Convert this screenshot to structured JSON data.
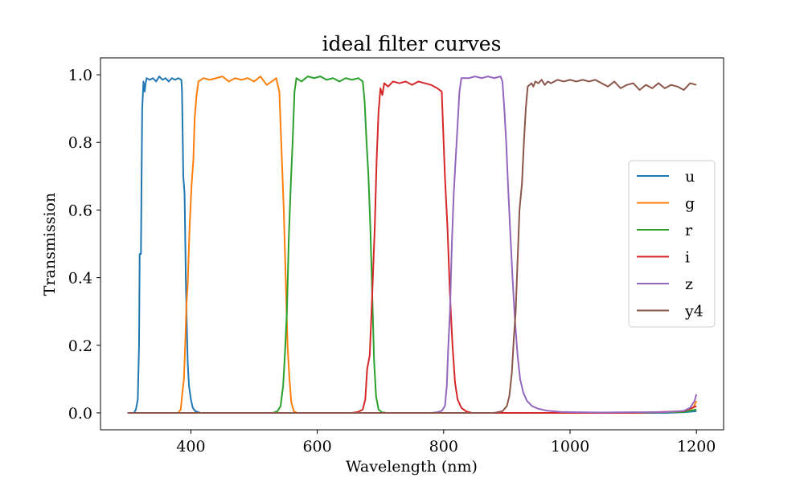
{
  "chart_data": {
    "type": "line",
    "title": "ideal filter curves",
    "xlabel": "Wavelength (nm)",
    "ylabel": "Transmission",
    "xlim": [
      257,
      1243
    ],
    "ylim": [
      -0.05,
      1.05
    ],
    "x_ticks": [
      400,
      600,
      800,
      1000,
      1200
    ],
    "x_tick_labels": [
      "400",
      "600",
      "800",
      "1000",
      "1200"
    ],
    "y_ticks": [
      0.0,
      0.2,
      0.4,
      0.6,
      0.8,
      1.0
    ],
    "y_tick_labels": [
      "0.0",
      "0.2",
      "0.4",
      "0.6",
      "0.8",
      "1.0"
    ],
    "grid": false,
    "legend_position": "center-right",
    "series": [
      {
        "name": "u",
        "color": "#1f77b4",
        "points": [
          [
            300,
            0
          ],
          [
            310,
            0
          ],
          [
            313,
            0.01
          ],
          [
            316,
            0.04
          ],
          [
            318,
            0.2
          ],
          [
            319,
            0.47
          ],
          [
            321,
            0.47
          ],
          [
            322,
            0.7
          ],
          [
            323,
            0.9
          ],
          [
            325,
            0.98
          ],
          [
            327,
            0.95
          ],
          [
            328,
            0.97
          ],
          [
            330,
            0.99
          ],
          [
            335,
            0.985
          ],
          [
            340,
            0.99
          ],
          [
            345,
            0.98
          ],
          [
            350,
            0.995
          ],
          [
            355,
            0.985
          ],
          [
            360,
            0.99
          ],
          [
            365,
            0.98
          ],
          [
            370,
            0.99
          ],
          [
            375,
            0.985
          ],
          [
            380,
            0.99
          ],
          [
            385,
            0.985
          ],
          [
            386,
            0.95
          ],
          [
            388,
            0.7
          ],
          [
            390,
            0.65
          ],
          [
            392,
            0.4
          ],
          [
            393,
            0.3
          ],
          [
            395,
            0.15
          ],
          [
            397,
            0.08
          ],
          [
            400,
            0.04
          ],
          [
            403,
            0.015
          ],
          [
            407,
            0.005
          ],
          [
            415,
            0
          ],
          [
            1100,
            0
          ],
          [
            1150,
            0
          ],
          [
            1180,
            0.002
          ],
          [
            1200,
            0.005
          ]
        ]
      },
      {
        "name": "g",
        "color": "#ff7f0e",
        "points": [
          [
            300,
            0
          ],
          [
            380,
            0
          ],
          [
            384,
            0.01
          ],
          [
            386,
            0.05
          ],
          [
            389,
            0.1
          ],
          [
            391,
            0.2
          ],
          [
            393,
            0.32
          ],
          [
            395,
            0.38
          ],
          [
            398,
            0.55
          ],
          [
            401,
            0.67
          ],
          [
            404,
            0.75
          ],
          [
            406,
            0.87
          ],
          [
            409,
            0.94
          ],
          [
            412,
            0.98
          ],
          [
            420,
            0.99
          ],
          [
            430,
            0.985
          ],
          [
            440,
            0.99
          ],
          [
            450,
            0.995
          ],
          [
            460,
            0.98
          ],
          [
            470,
            0.99
          ],
          [
            480,
            0.985
          ],
          [
            490,
            0.99
          ],
          [
            500,
            0.98
          ],
          [
            510,
            0.995
          ],
          [
            520,
            0.97
          ],
          [
            528,
            0.98
          ],
          [
            535,
            0.99
          ],
          [
            540,
            0.95
          ],
          [
            543,
            0.8
          ],
          [
            547,
            0.6
          ],
          [
            550,
            0.4
          ],
          [
            553,
            0.2
          ],
          [
            556,
            0.1
          ],
          [
            559,
            0.03
          ],
          [
            563,
            0.005
          ],
          [
            568,
            0
          ],
          [
            1100,
            0
          ],
          [
            1150,
            0.002
          ],
          [
            1180,
            0.005
          ],
          [
            1195,
            0.015
          ],
          [
            1200,
            0.035
          ]
        ]
      },
      {
        "name": "r",
        "color": "#2ca02c",
        "points": [
          [
            300,
            0
          ],
          [
            530,
            0
          ],
          [
            537,
            0.005
          ],
          [
            542,
            0.02
          ],
          [
            546,
            0.08
          ],
          [
            549,
            0.18
          ],
          [
            552,
            0.3
          ],
          [
            555,
            0.52
          ],
          [
            558,
            0.67
          ],
          [
            561,
            0.8
          ],
          [
            564,
            0.95
          ],
          [
            567,
            0.99
          ],
          [
            575,
            0.98
          ],
          [
            585,
            0.995
          ],
          [
            595,
            0.99
          ],
          [
            605,
            0.995
          ],
          [
            615,
            0.985
          ],
          [
            625,
            0.99
          ],
          [
            635,
            0.98
          ],
          [
            645,
            0.99
          ],
          [
            655,
            0.985
          ],
          [
            665,
            0.99
          ],
          [
            672,
            0.98
          ],
          [
            675,
            0.92
          ],
          [
            678,
            0.8
          ],
          [
            681,
            0.7
          ],
          [
            684,
            0.55
          ],
          [
            687,
            0.35
          ],
          [
            690,
            0.15
          ],
          [
            693,
            0.05
          ],
          [
            697,
            0.01
          ],
          [
            702,
            0.002
          ],
          [
            710,
            0
          ],
          [
            1100,
            0
          ],
          [
            1150,
            0.002
          ],
          [
            1180,
            0.003
          ],
          [
            1200,
            0.01
          ]
        ]
      },
      {
        "name": "i",
        "color": "#d62728",
        "points": [
          [
            300,
            0
          ],
          [
            655,
            0
          ],
          [
            665,
            0.003
          ],
          [
            672,
            0.01
          ],
          [
            676,
            0.04
          ],
          [
            679,
            0.13
          ],
          [
            683,
            0.17
          ],
          [
            687,
            0.35
          ],
          [
            691,
            0.55
          ],
          [
            694,
            0.75
          ],
          [
            697,
            0.89
          ],
          [
            700,
            0.96
          ],
          [
            703,
            0.94
          ],
          [
            706,
            0.975
          ],
          [
            712,
            0.965
          ],
          [
            720,
            0.98
          ],
          [
            730,
            0.975
          ],
          [
            740,
            0.98
          ],
          [
            750,
            0.97
          ],
          [
            760,
            0.98
          ],
          [
            770,
            0.975
          ],
          [
            780,
            0.97
          ],
          [
            790,
            0.96
          ],
          [
            797,
            0.95
          ],
          [
            799,
            0.85
          ],
          [
            802,
            0.7
          ],
          [
            806,
            0.55
          ],
          [
            810,
            0.35
          ],
          [
            814,
            0.2
          ],
          [
            818,
            0.09
          ],
          [
            822,
            0.04
          ],
          [
            828,
            0.015
          ],
          [
            836,
            0.004
          ],
          [
            845,
            0
          ],
          [
            1100,
            0
          ],
          [
            1180,
            0.005
          ],
          [
            1200,
            0.02
          ]
        ]
      },
      {
        "name": "z",
        "color": "#9467bd",
        "points": [
          [
            300,
            0
          ],
          [
            780,
            0
          ],
          [
            790,
            0.002
          ],
          [
            797,
            0.006
          ],
          [
            802,
            0.02
          ],
          [
            805,
            0.08
          ],
          [
            807,
            0.18
          ],
          [
            810,
            0.3
          ],
          [
            813,
            0.5
          ],
          [
            816,
            0.65
          ],
          [
            819,
            0.75
          ],
          [
            822,
            0.85
          ],
          [
            825,
            0.95
          ],
          [
            828,
            0.99
          ],
          [
            840,
            0.99
          ],
          [
            850,
            0.995
          ],
          [
            860,
            0.99
          ],
          [
            870,
            0.995
          ],
          [
            880,
            0.99
          ],
          [
            890,
            0.995
          ],
          [
            893,
            0.98
          ],
          [
            896,
            0.9
          ],
          [
            899,
            0.8
          ],
          [
            902,
            0.67
          ],
          [
            905,
            0.55
          ],
          [
            909,
            0.4
          ],
          [
            913,
            0.27
          ],
          [
            917,
            0.17
          ],
          [
            921,
            0.1
          ],
          [
            926,
            0.06
          ],
          [
            932,
            0.035
          ],
          [
            940,
            0.02
          ],
          [
            950,
            0.012
          ],
          [
            965,
            0.006
          ],
          [
            985,
            0.003
          ],
          [
            1010,
            0.002
          ],
          [
            1050,
            0.001
          ],
          [
            1100,
            0.002
          ],
          [
            1150,
            0.002
          ],
          [
            1180,
            0.006
          ],
          [
            1190,
            0.015
          ],
          [
            1197,
            0.035
          ],
          [
            1200,
            0.055
          ]
        ]
      },
      {
        "name": "y4",
        "color": "#8c564b",
        "points": [
          [
            300,
            0
          ],
          [
            880,
            0
          ],
          [
            893,
            0.005
          ],
          [
            900,
            0.02
          ],
          [
            904,
            0.05
          ],
          [
            908,
            0.12
          ],
          [
            911,
            0.22
          ],
          [
            914,
            0.3
          ],
          [
            917,
            0.45
          ],
          [
            920,
            0.6
          ],
          [
            924,
            0.68
          ],
          [
            927,
            0.8
          ],
          [
            930,
            0.9
          ],
          [
            933,
            0.965
          ],
          [
            936,
            0.97
          ],
          [
            939,
            0.975
          ],
          [
            942,
            0.965
          ],
          [
            945,
            0.98
          ],
          [
            950,
            0.975
          ],
          [
            955,
            0.985
          ],
          [
            960,
            0.97
          ],
          [
            965,
            0.98
          ],
          [
            970,
            0.975
          ],
          [
            980,
            0.985
          ],
          [
            990,
            0.98
          ],
          [
            1000,
            0.985
          ],
          [
            1010,
            0.98
          ],
          [
            1020,
            0.985
          ],
          [
            1030,
            0.98
          ],
          [
            1040,
            0.985
          ],
          [
            1050,
            0.975
          ],
          [
            1060,
            0.965
          ],
          [
            1070,
            0.98
          ],
          [
            1080,
            0.96
          ],
          [
            1090,
            0.97
          ],
          [
            1100,
            0.975
          ],
          [
            1110,
            0.955
          ],
          [
            1120,
            0.97
          ],
          [
            1130,
            0.96
          ],
          [
            1140,
            0.975
          ],
          [
            1150,
            0.96
          ],
          [
            1160,
            0.97
          ],
          [
            1170,
            0.965
          ],
          [
            1180,
            0.955
          ],
          [
            1190,
            0.975
          ],
          [
            1200,
            0.97
          ]
        ]
      }
    ]
  }
}
